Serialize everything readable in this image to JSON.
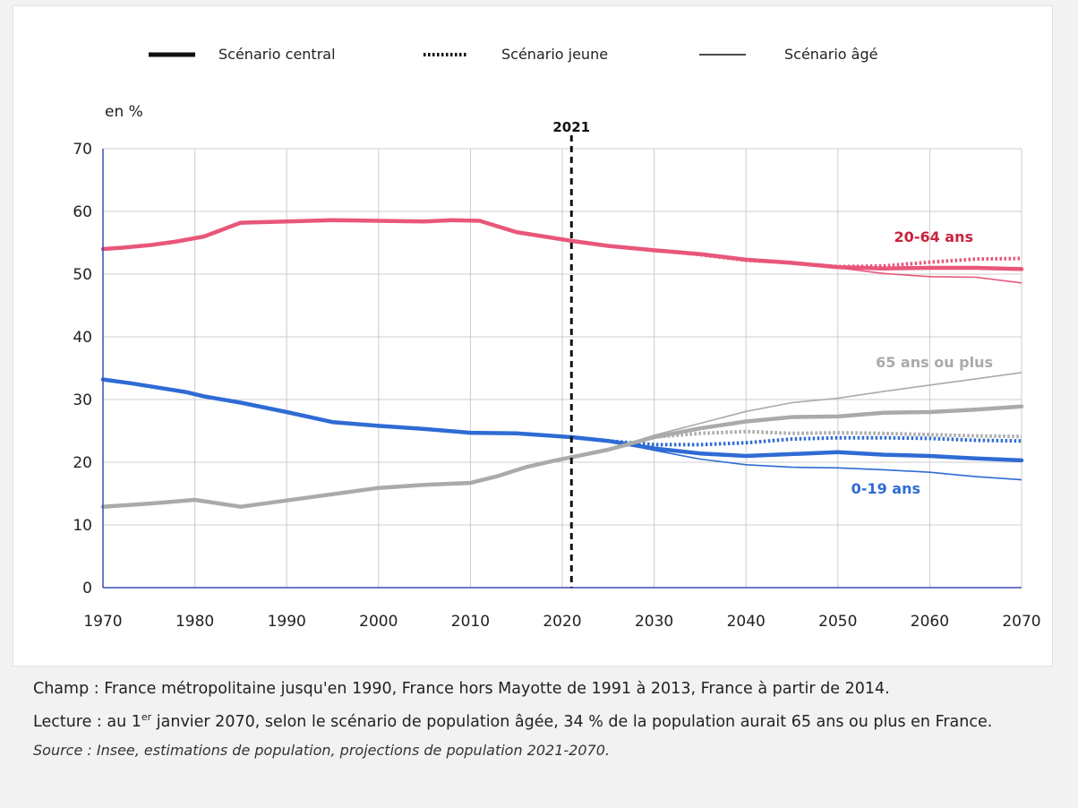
{
  "chart_data": {
    "type": "line",
    "ylabel": "en %",
    "ylim": [
      0,
      70
    ],
    "xlim": [
      1970,
      2070
    ],
    "x_ticks": [
      1970,
      1980,
      1990,
      2000,
      2010,
      2020,
      2030,
      2040,
      2050,
      2060,
      2070
    ],
    "y_ticks": [
      0,
      10,
      20,
      30,
      40,
      50,
      60,
      70
    ],
    "grid": true,
    "marker": {
      "x": 2021,
      "label": "2021"
    },
    "legend": [
      {
        "key": "central",
        "label": "Scénario central",
        "style": "thick-solid"
      },
      {
        "key": "jeune",
        "label": "Scénario jeune",
        "style": "dotted"
      },
      {
        "key": "age",
        "label": "Scénario âgé",
        "style": "thin-solid"
      }
    ],
    "groups": [
      {
        "label": "20-64 ans",
        "color": "#e8577a",
        "label_color": "#c8243f",
        "historical": {
          "x": [
            1970,
            1972,
            1975,
            1978,
            1981,
            1985,
            1990,
            1995,
            2000,
            2005,
            2008,
            2011,
            2015,
            2018,
            2021
          ],
          "y": [
            54,
            54.2,
            54.6,
            55.2,
            56,
            58.2,
            58.4,
            58.6,
            58.5,
            58.4,
            58.6,
            58.5,
            56.7,
            56,
            55.3
          ]
        },
        "central": {
          "x": [
            2021,
            2025,
            2030,
            2035,
            2040,
            2045,
            2050,
            2055,
            2060,
            2065,
            2070
          ],
          "y": [
            55.3,
            54.5,
            53.8,
            53.2,
            52.3,
            51.8,
            51.1,
            50.9,
            51,
            51,
            50.8
          ]
        },
        "jeune": {
          "x": [
            2021,
            2025,
            2030,
            2035,
            2040,
            2045,
            2050,
            2055,
            2060,
            2065,
            2070
          ],
          "y": [
            55.3,
            54.5,
            53.8,
            53.1,
            52.2,
            51.8,
            51.2,
            51.3,
            51.9,
            52.4,
            52.5
          ]
        },
        "age": {
          "x": [
            2021,
            2025,
            2030,
            2035,
            2040,
            2045,
            2050,
            2055,
            2060,
            2065,
            2070
          ],
          "y": [
            55.3,
            54.5,
            53.8,
            53.1,
            52.2,
            51.6,
            51,
            50.1,
            49.6,
            49.5,
            48.6
          ]
        }
      },
      {
        "label": "0-19 ans",
        "color": "#2f6bd4",
        "label_color": "#2f6bd4",
        "historical": {
          "x": [
            1970,
            1973,
            1976,
            1979,
            1981,
            1985,
            1990,
            1995,
            2000,
            2005,
            2010,
            2015,
            2018,
            2021
          ],
          "y": [
            33.2,
            32.6,
            31.9,
            31.2,
            30.5,
            29.5,
            28,
            26.4,
            25.8,
            25.3,
            24.7,
            24.6,
            24.3,
            24
          ]
        },
        "central": {
          "x": [
            2021,
            2025,
            2030,
            2035,
            2040,
            2045,
            2050,
            2055,
            2060,
            2065,
            2070
          ],
          "y": [
            24,
            23.4,
            22.2,
            21.4,
            21,
            21.3,
            21.6,
            21.2,
            21,
            20.6,
            20.3
          ]
        },
        "jeune": {
          "x": [
            2021,
            2025,
            2030,
            2035,
            2040,
            2045,
            2050,
            2055,
            2060,
            2065,
            2070
          ],
          "y": [
            24,
            23.4,
            22.8,
            22.8,
            23.1,
            23.7,
            23.9,
            23.9,
            23.8,
            23.5,
            23.4
          ]
        },
        "age": {
          "x": [
            2021,
            2025,
            2030,
            2035,
            2040,
            2045,
            2050,
            2055,
            2060,
            2065,
            2070
          ],
          "y": [
            24,
            23.4,
            21.9,
            20.5,
            19.6,
            19.2,
            19.1,
            18.8,
            18.4,
            17.7,
            17.2
          ]
        }
      },
      {
        "label": "65 ans ou plus",
        "color": "#aaaaaa",
        "label_color": "#aaaaaa",
        "historical": {
          "x": [
            1970,
            1975,
            1980,
            1985,
            1990,
            1995,
            2000,
            2005,
            2010,
            2013,
            2016,
            2019,
            2021
          ],
          "y": [
            12.9,
            13.4,
            14,
            12.9,
            13.9,
            14.9,
            15.9,
            16.4,
            16.7,
            17.8,
            19.2,
            20.2,
            20.8
          ]
        },
        "central": {
          "x": [
            2021,
            2025,
            2030,
            2035,
            2040,
            2045,
            2050,
            2055,
            2060,
            2065,
            2070
          ],
          "y": [
            20.8,
            22,
            24,
            25.4,
            26.5,
            27.2,
            27.3,
            27.9,
            28,
            28.4,
            28.9
          ]
        },
        "jeune": {
          "x": [
            2021,
            2025,
            2030,
            2035,
            2040,
            2045,
            2050,
            2055,
            2060,
            2065,
            2070
          ],
          "y": [
            20.8,
            22,
            24,
            24.6,
            24.9,
            24.6,
            24.7,
            24.6,
            24.4,
            24.2,
            24.1
          ]
        },
        "age": {
          "x": [
            2021,
            2025,
            2030,
            2035,
            2040,
            2045,
            2050,
            2055,
            2060,
            2065,
            2070
          ],
          "y": [
            20.8,
            22,
            24.3,
            26.2,
            28.1,
            29.5,
            30.2,
            31.3,
            32.3,
            33.3,
            34.3
          ]
        }
      }
    ]
  },
  "notes": {
    "champ": "Champ : France métropolitaine jusqu'en 1990, France hors Mayotte de 1991 à 2013, France à partir de 2014.",
    "lecture_a": "Lecture : au 1",
    "lecture_sup": "er",
    "lecture_b": " janvier 2070, selon le scénario de population âgée, 34 % de la population aurait 65 ans ou plus en France.",
    "source": "Source : Insee, estimations de population, projections de population 2021-2070."
  }
}
